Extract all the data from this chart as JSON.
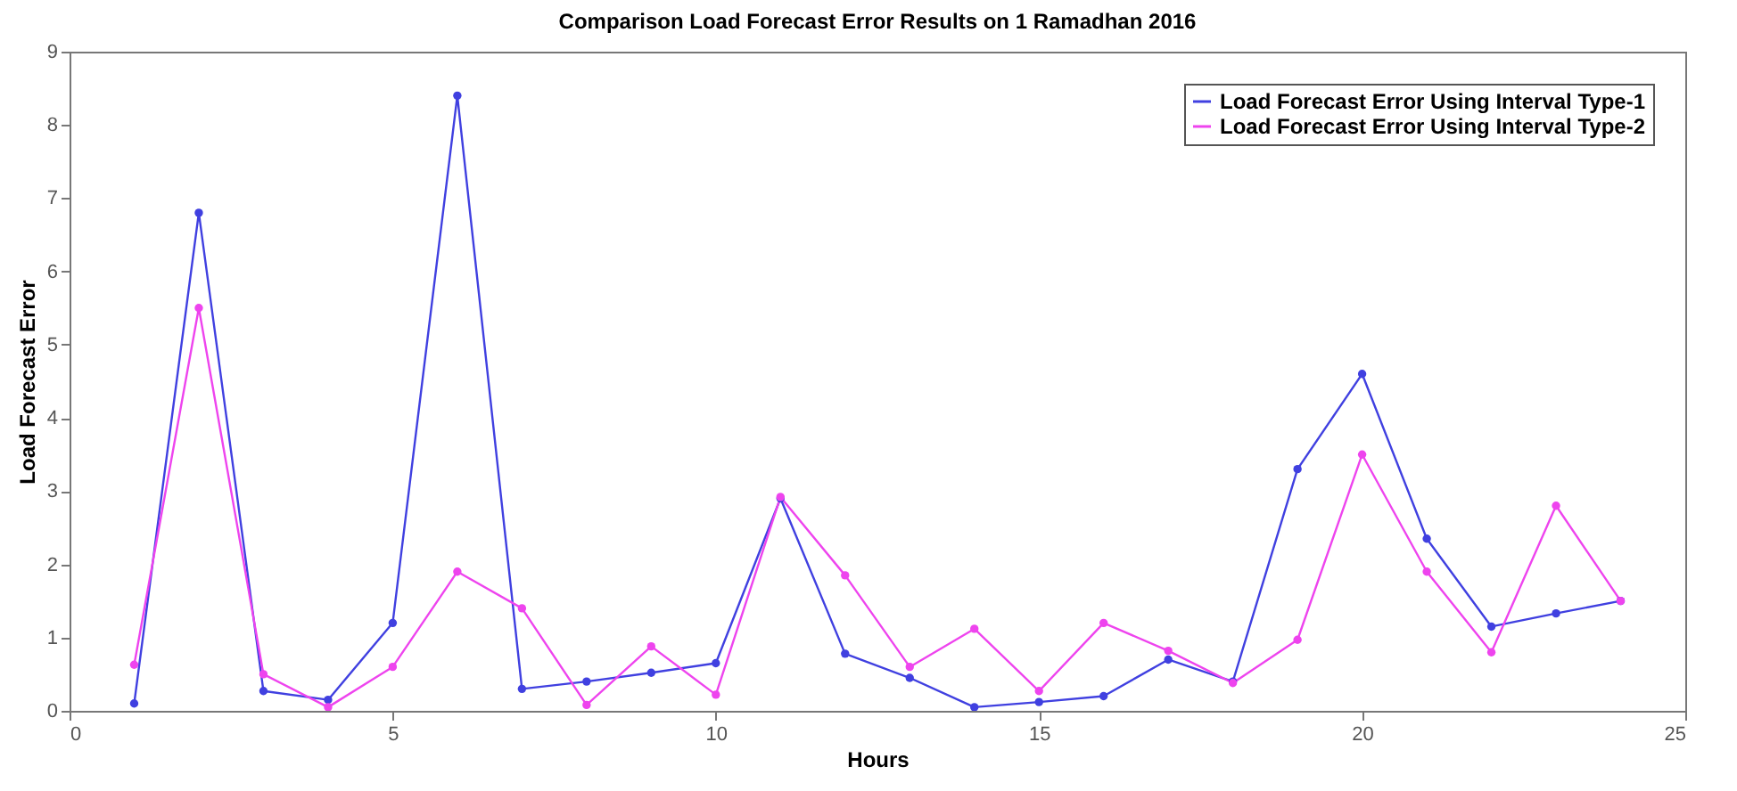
{
  "chart_data": {
    "type": "line",
    "title": "Comparison Load Forecast Error Results on 1 Ramadhan 2016",
    "xlabel": "Hours",
    "ylabel": "Load Forecast Error",
    "x": [
      1,
      2,
      3,
      4,
      5,
      6,
      7,
      8,
      9,
      10,
      11,
      12,
      13,
      14,
      15,
      16,
      17,
      18,
      19,
      20,
      21,
      22,
      23,
      24
    ],
    "series": [
      {
        "name": "Load Forecast Error Using Interval Type-1",
        "color": "#4040e0",
        "values": [
          0.1,
          6.8,
          0.27,
          0.15,
          1.2,
          8.4,
          0.3,
          0.4,
          0.52,
          0.65,
          2.9,
          0.78,
          0.45,
          0.05,
          0.12,
          0.2,
          0.7,
          0.4,
          3.3,
          4.6,
          2.35,
          1.15,
          1.33,
          1.5
        ]
      },
      {
        "name": "Load Forecast Error Using Interval Type-2",
        "color": "#ee44ee",
        "values": [
          0.63,
          5.5,
          0.5,
          0.05,
          0.6,
          1.9,
          1.4,
          0.08,
          0.88,
          0.22,
          2.92,
          1.85,
          0.6,
          1.12,
          0.27,
          1.2,
          0.82,
          0.38,
          0.97,
          3.5,
          1.9,
          0.8,
          2.8,
          1.5
        ]
      }
    ],
    "xlim": [
      0,
      25
    ],
    "xticks": [
      0,
      5,
      10,
      15,
      20,
      25
    ],
    "ylim": [
      0,
      9
    ],
    "yticks": [
      0,
      1,
      2,
      3,
      4,
      5,
      6,
      7,
      8,
      9
    ],
    "grid": false,
    "legend": "top right",
    "marker": "circle",
    "line_style": "solid"
  }
}
